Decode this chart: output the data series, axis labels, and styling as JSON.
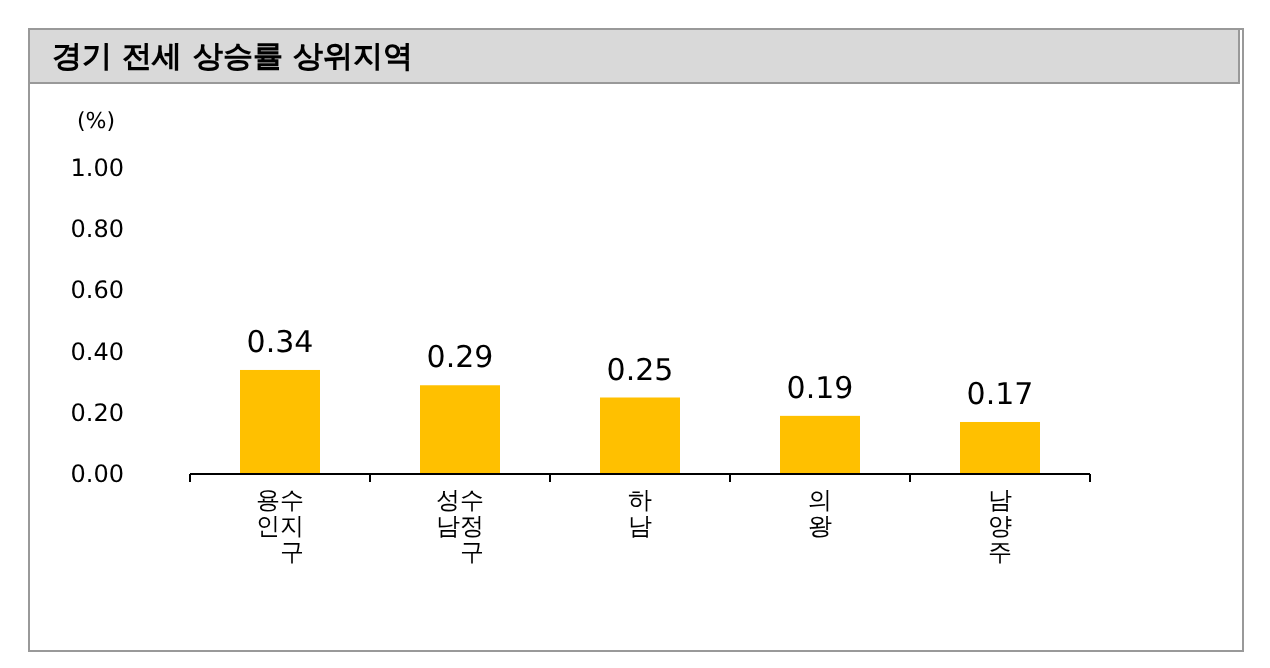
{
  "chart_data": {
    "type": "bar",
    "title": "경기 전세 상승률 상위지역",
    "ylabel": "(%)",
    "categories": [
      "용인 수지구",
      "성남 수정구",
      "하남",
      "의왕",
      "남양주"
    ],
    "values": [
      0.34,
      0.29,
      0.25,
      0.19,
      0.17
    ],
    "color": "#ffc000",
    "data_labels": true,
    "ylim": [
      0,
      1
    ],
    "yticks": [
      {
        "value": 0,
        "label": "0.00"
      },
      {
        "value": 0.2,
        "label": "0.20"
      },
      {
        "value": 0.4,
        "label": "0.40"
      },
      {
        "value": 0.6,
        "label": "0.60"
      },
      {
        "value": 0.8,
        "label": "0.80"
      },
      {
        "value": 1,
        "label": "1.00"
      }
    ]
  }
}
